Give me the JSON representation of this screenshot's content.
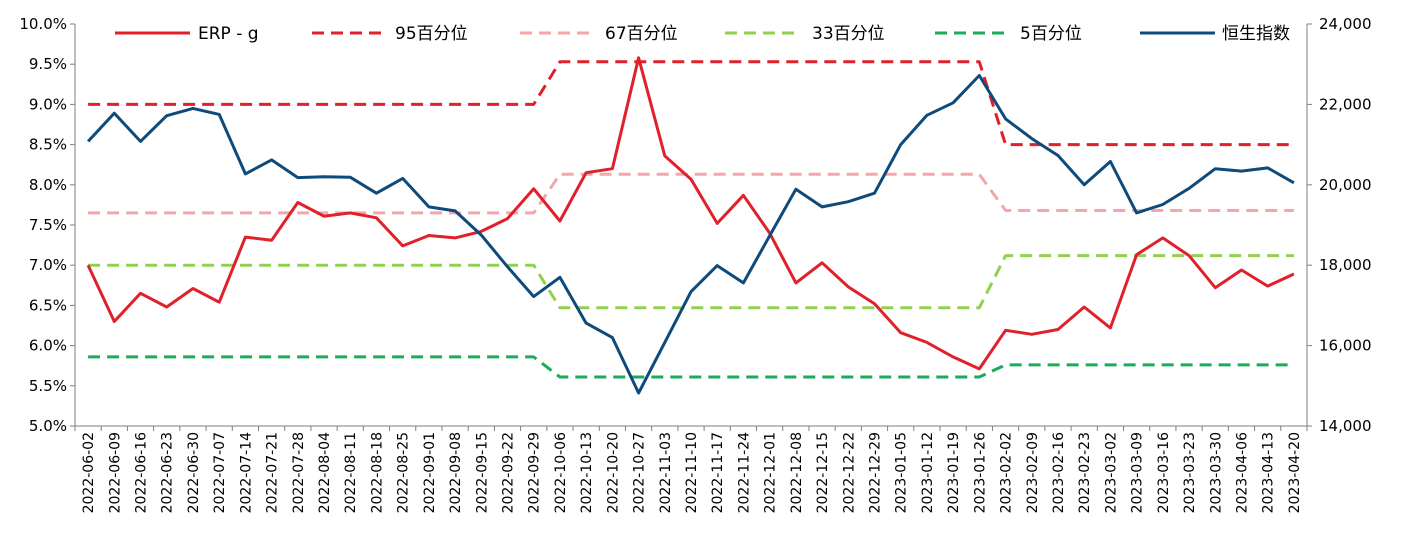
{
  "chart_data": {
    "type": "line",
    "title": "",
    "x": [
      "2022-06-02",
      "2022-06-09",
      "2022-06-16",
      "2022-06-23",
      "2022-06-30",
      "2022-07-07",
      "2022-07-14",
      "2022-07-21",
      "2022-07-28",
      "2022-08-04",
      "2022-08-11",
      "2022-08-18",
      "2022-08-25",
      "2022-09-01",
      "2022-09-08",
      "2022-09-15",
      "2022-09-22",
      "2022-09-29",
      "2022-10-06",
      "2022-10-13",
      "2022-10-20",
      "2022-10-27",
      "2022-11-03",
      "2022-11-10",
      "2022-11-17",
      "2022-11-24",
      "2022-12-01",
      "2022-12-08",
      "2022-12-15",
      "2022-12-22",
      "2022-12-29",
      "2023-01-05",
      "2023-01-12",
      "2023-01-19",
      "2023-01-26",
      "2023-02-02",
      "2023-02-09",
      "2023-02-16",
      "2023-02-23",
      "2023-03-02",
      "2023-03-09",
      "2023-03-16",
      "2023-03-23",
      "2023-03-30",
      "2023-04-06",
      "2023-04-13",
      "2023-04-20"
    ],
    "y_left": {
      "min": 5.0,
      "max": 10.0,
      "step": 0.5,
      "ticks": [
        "5.0%",
        "5.5%",
        "6.0%",
        "6.5%",
        "7.0%",
        "7.5%",
        "8.0%",
        "8.5%",
        "9.0%",
        "9.5%",
        "10.0%"
      ]
    },
    "y_right": {
      "min": 14000,
      "max": 24000,
      "step": 2000,
      "ticks": [
        "14,000",
        "16,000",
        "18,000",
        "20,000",
        "22,000",
        "24,000"
      ]
    },
    "legend_position": "top",
    "grid": false,
    "series": [
      {
        "name": "ERP - g",
        "axis": "left",
        "color": "#e0202a",
        "style": "solid",
        "values": [
          7.0,
          6.3,
          6.65,
          6.48,
          6.71,
          6.54,
          7.35,
          7.31,
          7.78,
          7.61,
          7.65,
          7.59,
          7.24,
          7.37,
          7.34,
          7.42,
          7.58,
          7.95,
          7.55,
          8.15,
          8.2,
          9.58,
          8.36,
          8.07,
          7.52,
          7.87,
          7.4,
          6.78,
          7.03,
          6.73,
          6.52,
          6.16,
          6.04,
          5.86,
          5.71,
          6.19,
          6.14,
          6.2,
          6.48,
          6.22,
          7.13,
          7.34,
          7.12,
          6.72,
          6.94,
          6.74,
          6.89
        ]
      },
      {
        "name": "95百分位",
        "axis": "left",
        "color": "#e0202a",
        "style": "dashed",
        "values": [
          9.0,
          9.0,
          9.0,
          9.0,
          9.0,
          9.0,
          9.0,
          9.0,
          9.0,
          9.0,
          9.0,
          9.0,
          9.0,
          9.0,
          9.0,
          9.0,
          9.0,
          9.0,
          9.53,
          9.53,
          9.53,
          9.53,
          9.53,
          9.53,
          9.53,
          9.53,
          9.53,
          9.53,
          9.53,
          9.53,
          9.53,
          9.53,
          9.53,
          9.53,
          9.53,
          8.5,
          8.5,
          8.5,
          8.5,
          8.5,
          8.5,
          8.5,
          8.5,
          8.5,
          8.5,
          8.5,
          8.5
        ]
      },
      {
        "name": "67百分位",
        "axis": "left",
        "color": "#f4a6aa",
        "style": "dashed",
        "values": [
          7.65,
          7.65,
          7.65,
          7.65,
          7.65,
          7.65,
          7.65,
          7.65,
          7.65,
          7.65,
          7.65,
          7.65,
          7.65,
          7.65,
          7.65,
          7.65,
          7.65,
          7.65,
          8.13,
          8.13,
          8.13,
          8.13,
          8.13,
          8.13,
          8.13,
          8.13,
          8.13,
          8.13,
          8.13,
          8.13,
          8.13,
          8.13,
          8.13,
          8.13,
          8.13,
          7.68,
          7.68,
          7.68,
          7.68,
          7.68,
          7.68,
          7.68,
          7.68,
          7.68,
          7.68,
          7.68,
          7.68
        ]
      },
      {
        "name": "33百分位",
        "axis": "left",
        "color": "#92d050",
        "style": "dashed",
        "values": [
          7.0,
          7.0,
          7.0,
          7.0,
          7.0,
          7.0,
          7.0,
          7.0,
          7.0,
          7.0,
          7.0,
          7.0,
          7.0,
          7.0,
          7.0,
          7.0,
          7.0,
          7.0,
          6.47,
          6.47,
          6.47,
          6.47,
          6.47,
          6.47,
          6.47,
          6.47,
          6.47,
          6.47,
          6.47,
          6.47,
          6.47,
          6.47,
          6.47,
          6.47,
          6.47,
          7.12,
          7.12,
          7.12,
          7.12,
          7.12,
          7.12,
          7.12,
          7.12,
          7.12,
          7.12,
          7.12,
          7.12
        ]
      },
      {
        "name": "5百分位",
        "axis": "left",
        "color": "#1aac5a",
        "style": "dashed",
        "values": [
          5.86,
          5.86,
          5.86,
          5.86,
          5.86,
          5.86,
          5.86,
          5.86,
          5.86,
          5.86,
          5.86,
          5.86,
          5.86,
          5.86,
          5.86,
          5.86,
          5.86,
          5.86,
          5.61,
          5.61,
          5.61,
          5.61,
          5.61,
          5.61,
          5.61,
          5.61,
          5.61,
          5.61,
          5.61,
          5.61,
          5.61,
          5.61,
          5.61,
          5.61,
          5.61,
          5.76,
          5.76,
          5.76,
          5.76,
          5.76,
          5.76,
          5.76,
          5.76,
          5.76,
          5.76,
          5.76,
          5.76
        ]
      },
      {
        "name": "恒生指数",
        "axis": "right",
        "color": "#0e4a7a",
        "style": "solid",
        "values": [
          21080,
          21780,
          21080,
          21720,
          21900,
          21750,
          20270,
          20620,
          20180,
          20200,
          20190,
          19790,
          20160,
          19450,
          19350,
          18750,
          17960,
          17220,
          17700,
          16560,
          16200,
          14820,
          16080,
          17340,
          17990,
          17560,
          18730,
          19890,
          19450,
          19580,
          19790,
          21000,
          21730,
          22040,
          22720,
          21640,
          21150,
          20730,
          20000,
          20580,
          19300,
          19510,
          19910,
          20400,
          20340,
          20420,
          20050
        ]
      }
    ]
  }
}
